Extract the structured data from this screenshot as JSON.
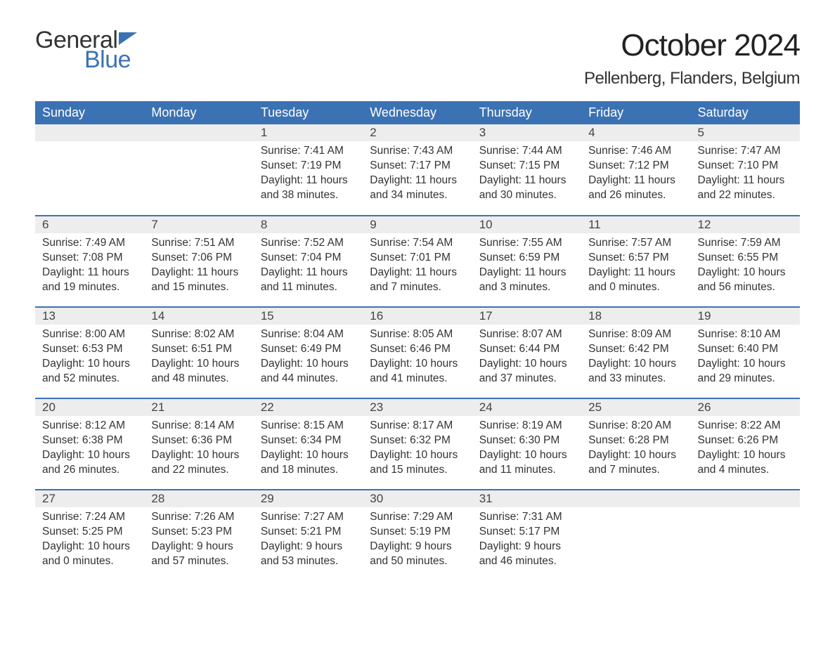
{
  "brand": {
    "line1": "General",
    "line2": "Blue",
    "flag_color": "#3b72b3"
  },
  "title": "October 2024",
  "location": "Pellenberg, Flanders, Belgium",
  "colors": {
    "header_bg": "#3b72b3",
    "header_text": "#ffffff",
    "daynum_bg": "#ededed",
    "row_divider": "#3b72b3",
    "body_text": "#333333",
    "background": "#ffffff"
  },
  "typography": {
    "title_fontsize": 44,
    "location_fontsize": 24,
    "weekday_fontsize": 18,
    "daynum_fontsize": 17,
    "cell_fontsize": 15.5
  },
  "weekdays": [
    "Sunday",
    "Monday",
    "Tuesday",
    "Wednesday",
    "Thursday",
    "Friday",
    "Saturday"
  ],
  "labels": {
    "sunrise": "Sunrise:",
    "sunset": "Sunset:",
    "daylight": "Daylight:"
  },
  "weeks": [
    [
      null,
      null,
      {
        "n": "1",
        "sunrise": "7:41 AM",
        "sunset": "7:19 PM",
        "daylight": "11 hours and 38 minutes."
      },
      {
        "n": "2",
        "sunrise": "7:43 AM",
        "sunset": "7:17 PM",
        "daylight": "11 hours and 34 minutes."
      },
      {
        "n": "3",
        "sunrise": "7:44 AM",
        "sunset": "7:15 PM",
        "daylight": "11 hours and 30 minutes."
      },
      {
        "n": "4",
        "sunrise": "7:46 AM",
        "sunset": "7:12 PM",
        "daylight": "11 hours and 26 minutes."
      },
      {
        "n": "5",
        "sunrise": "7:47 AM",
        "sunset": "7:10 PM",
        "daylight": "11 hours and 22 minutes."
      }
    ],
    [
      {
        "n": "6",
        "sunrise": "7:49 AM",
        "sunset": "7:08 PM",
        "daylight": "11 hours and 19 minutes."
      },
      {
        "n": "7",
        "sunrise": "7:51 AM",
        "sunset": "7:06 PM",
        "daylight": "11 hours and 15 minutes."
      },
      {
        "n": "8",
        "sunrise": "7:52 AM",
        "sunset": "7:04 PM",
        "daylight": "11 hours and 11 minutes."
      },
      {
        "n": "9",
        "sunrise": "7:54 AM",
        "sunset": "7:01 PM",
        "daylight": "11 hours and 7 minutes."
      },
      {
        "n": "10",
        "sunrise": "7:55 AM",
        "sunset": "6:59 PM",
        "daylight": "11 hours and 3 minutes."
      },
      {
        "n": "11",
        "sunrise": "7:57 AM",
        "sunset": "6:57 PM",
        "daylight": "11 hours and 0 minutes."
      },
      {
        "n": "12",
        "sunrise": "7:59 AM",
        "sunset": "6:55 PM",
        "daylight": "10 hours and 56 minutes."
      }
    ],
    [
      {
        "n": "13",
        "sunrise": "8:00 AM",
        "sunset": "6:53 PM",
        "daylight": "10 hours and 52 minutes."
      },
      {
        "n": "14",
        "sunrise": "8:02 AM",
        "sunset": "6:51 PM",
        "daylight": "10 hours and 48 minutes."
      },
      {
        "n": "15",
        "sunrise": "8:04 AM",
        "sunset": "6:49 PM",
        "daylight": "10 hours and 44 minutes."
      },
      {
        "n": "16",
        "sunrise": "8:05 AM",
        "sunset": "6:46 PM",
        "daylight": "10 hours and 41 minutes."
      },
      {
        "n": "17",
        "sunrise": "8:07 AM",
        "sunset": "6:44 PM",
        "daylight": "10 hours and 37 minutes."
      },
      {
        "n": "18",
        "sunrise": "8:09 AM",
        "sunset": "6:42 PM",
        "daylight": "10 hours and 33 minutes."
      },
      {
        "n": "19",
        "sunrise": "8:10 AM",
        "sunset": "6:40 PM",
        "daylight": "10 hours and 29 minutes."
      }
    ],
    [
      {
        "n": "20",
        "sunrise": "8:12 AM",
        "sunset": "6:38 PM",
        "daylight": "10 hours and 26 minutes."
      },
      {
        "n": "21",
        "sunrise": "8:14 AM",
        "sunset": "6:36 PM",
        "daylight": "10 hours and 22 minutes."
      },
      {
        "n": "22",
        "sunrise": "8:15 AM",
        "sunset": "6:34 PM",
        "daylight": "10 hours and 18 minutes."
      },
      {
        "n": "23",
        "sunrise": "8:17 AM",
        "sunset": "6:32 PM",
        "daylight": "10 hours and 15 minutes."
      },
      {
        "n": "24",
        "sunrise": "8:19 AM",
        "sunset": "6:30 PM",
        "daylight": "10 hours and 11 minutes."
      },
      {
        "n": "25",
        "sunrise": "8:20 AM",
        "sunset": "6:28 PM",
        "daylight": "10 hours and 7 minutes."
      },
      {
        "n": "26",
        "sunrise": "8:22 AM",
        "sunset": "6:26 PM",
        "daylight": "10 hours and 4 minutes."
      }
    ],
    [
      {
        "n": "27",
        "sunrise": "7:24 AM",
        "sunset": "5:25 PM",
        "daylight": "10 hours and 0 minutes."
      },
      {
        "n": "28",
        "sunrise": "7:26 AM",
        "sunset": "5:23 PM",
        "daylight": "9 hours and 57 minutes."
      },
      {
        "n": "29",
        "sunrise": "7:27 AM",
        "sunset": "5:21 PM",
        "daylight": "9 hours and 53 minutes."
      },
      {
        "n": "30",
        "sunrise": "7:29 AM",
        "sunset": "5:19 PM",
        "daylight": "9 hours and 50 minutes."
      },
      {
        "n": "31",
        "sunrise": "7:31 AM",
        "sunset": "5:17 PM",
        "daylight": "9 hours and 46 minutes."
      },
      null,
      null
    ]
  ]
}
